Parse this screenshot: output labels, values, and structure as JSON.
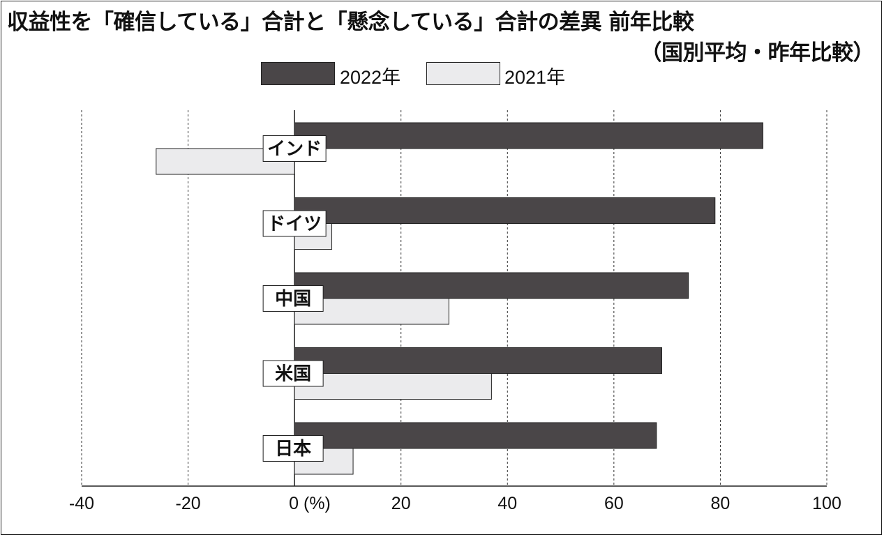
{
  "title": "収益性を「確信している」合計と「懸念している」合計の差異 前年比較",
  "subtitle": "（国別平均・昨年比較）",
  "legend": [
    {
      "label": "2022年",
      "color": "#4a4648"
    },
    {
      "label": "2021年",
      "color": "#ebebed"
    }
  ],
  "chart_data": {
    "type": "bar",
    "orientation": "horizontal",
    "categories": [
      "インド",
      "ドイツ",
      "中国",
      "米国",
      "日本"
    ],
    "series": [
      {
        "name": "2022年",
        "values": [
          88,
          79,
          74,
          69,
          68
        ]
      },
      {
        "name": "2021年",
        "values": [
          -26,
          7,
          29,
          37,
          11
        ]
      }
    ],
    "x_ticks": [
      "-40",
      "-20",
      "0 (%)",
      "20",
      "40",
      "60",
      "80",
      "100"
    ],
    "x_tick_values": [
      -40,
      -20,
      0,
      20,
      40,
      60,
      80,
      100
    ],
    "xlim": [
      -40,
      100
    ],
    "grid": "vertical dashed",
    "legend_position": "top-center"
  }
}
